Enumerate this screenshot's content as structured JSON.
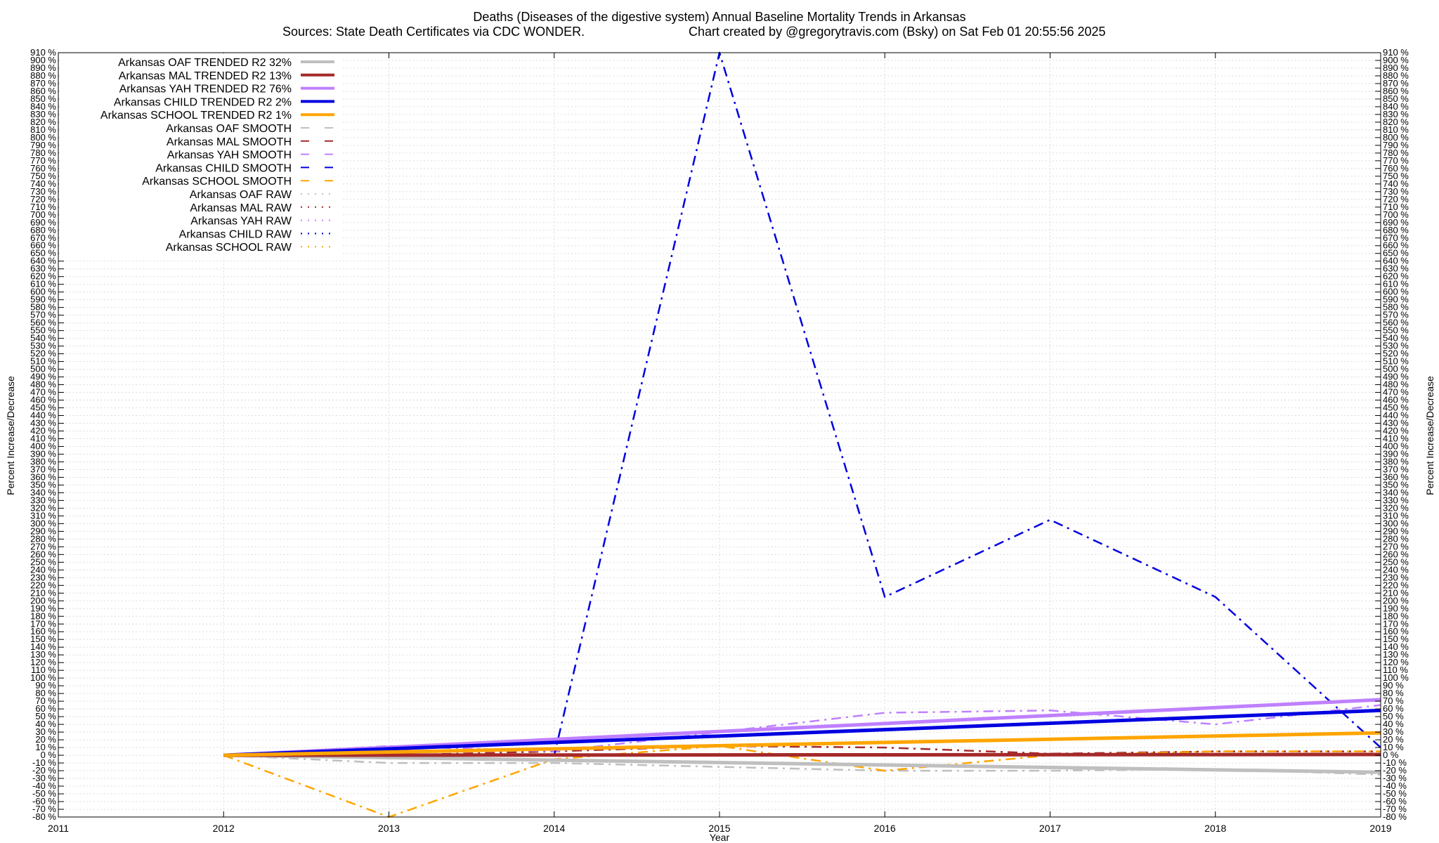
{
  "chart_data": {
    "type": "line",
    "title": "Deaths (Diseases of the digestive system)  Annual Baseline Mortality Trends in Arkansas",
    "subtitle_left": "Sources: State Death Certificates via CDC WONDER.",
    "subtitle_right": "Chart created by @gregorytravis.com (Bsky) on Sat Feb 01 20:55:56 2025",
    "xlabel": "Year",
    "ylabel": "Percent Increase/Decrease",
    "ylabel_right": "Percent Increase/Decrease",
    "xlim": [
      2011,
      2019
    ],
    "ylim": [
      -80,
      910
    ],
    "xticks": [
      "2011",
      "2012",
      "2013",
      "2014",
      "2015",
      "2016",
      "2017",
      "2018",
      "2019"
    ],
    "ytick_step": 10,
    "ytick_suffix": " %",
    "grid": true,
    "legend_position": "top-left",
    "series": [
      {
        "name": "Arkansas OAF TRENDED R2  32%",
        "kind": "trend",
        "color": "#bfbfbf",
        "x": [
          2012,
          2019
        ],
        "y": [
          0,
          -22
        ]
      },
      {
        "name": "Arkansas MAL TRENDED R2  13%",
        "kind": "trend",
        "color": "#a52a2a",
        "x": [
          2012,
          2019
        ],
        "y": [
          0,
          1
        ]
      },
      {
        "name": "Arkansas YAH TRENDED R2  76%",
        "kind": "trend",
        "color": "#bf80ff",
        "x": [
          2012,
          2019
        ],
        "y": [
          0,
          72
        ]
      },
      {
        "name": "Arkansas CHILD TRENDED R2   2%",
        "kind": "trend",
        "color": "#0000e0",
        "x": [
          2012,
          2019
        ],
        "y": [
          0,
          58
        ]
      },
      {
        "name": "Arkansas SCHOOL TRENDED R2   1%",
        "kind": "trend",
        "color": "#ffa500",
        "x": [
          2012,
          2019
        ],
        "y": [
          0,
          29
        ]
      },
      {
        "name": "Arkansas OAF SMOOTH",
        "kind": "smooth",
        "color": "#bfbfbf",
        "x": [
          2012,
          2013,
          2014,
          2015,
          2016,
          2017,
          2018,
          2019
        ],
        "y": [
          0,
          -10,
          -10,
          -15,
          -20,
          -20,
          -18,
          -25
        ]
      },
      {
        "name": "Arkansas MAL SMOOTH",
        "kind": "smooth",
        "color": "#a52a2a",
        "x": [
          2012,
          2013,
          2014,
          2015,
          2016,
          2017,
          2018,
          2019
        ],
        "y": [
          0,
          0,
          5,
          12,
          10,
          2,
          5,
          5
        ]
      },
      {
        "name": "Arkansas YAH SMOOTH",
        "kind": "smooth",
        "color": "#bf80ff",
        "x": [
          2012,
          2013,
          2014,
          2015,
          2016,
          2017,
          2018,
          2019
        ],
        "y": [
          0,
          12,
          5,
          30,
          55,
          58,
          40,
          65
        ]
      },
      {
        "name": "Arkansas CHILD SMOOTH",
        "kind": "smooth",
        "color": "#0000e0",
        "x": [
          2012,
          2013,
          2014,
          2015,
          2016,
          2017,
          2018,
          2019
        ],
        "y": [
          0,
          0,
          0,
          910,
          205,
          305,
          205,
          10
        ]
      },
      {
        "name": "Arkansas SCHOOL SMOOTH",
        "kind": "smooth",
        "color": "#ffa500",
        "x": [
          2012,
          2013,
          2014,
          2015,
          2016,
          2017,
          2018,
          2019
        ],
        "y": [
          0,
          -80,
          -5,
          12,
          -20,
          0,
          5,
          5
        ]
      },
      {
        "name": "Arkansas OAF RAW",
        "kind": "raw",
        "color": "#bfbfbf"
      },
      {
        "name": "Arkansas MAL RAW",
        "kind": "raw",
        "color": "#a52a2a"
      },
      {
        "name": "Arkansas YAH RAW",
        "kind": "raw",
        "color": "#bf80ff"
      },
      {
        "name": "Arkansas CHILD RAW",
        "kind": "raw",
        "color": "#0000e0"
      },
      {
        "name": "Arkansas SCHOOL RAW",
        "kind": "raw",
        "color": "#ffa500"
      }
    ]
  }
}
